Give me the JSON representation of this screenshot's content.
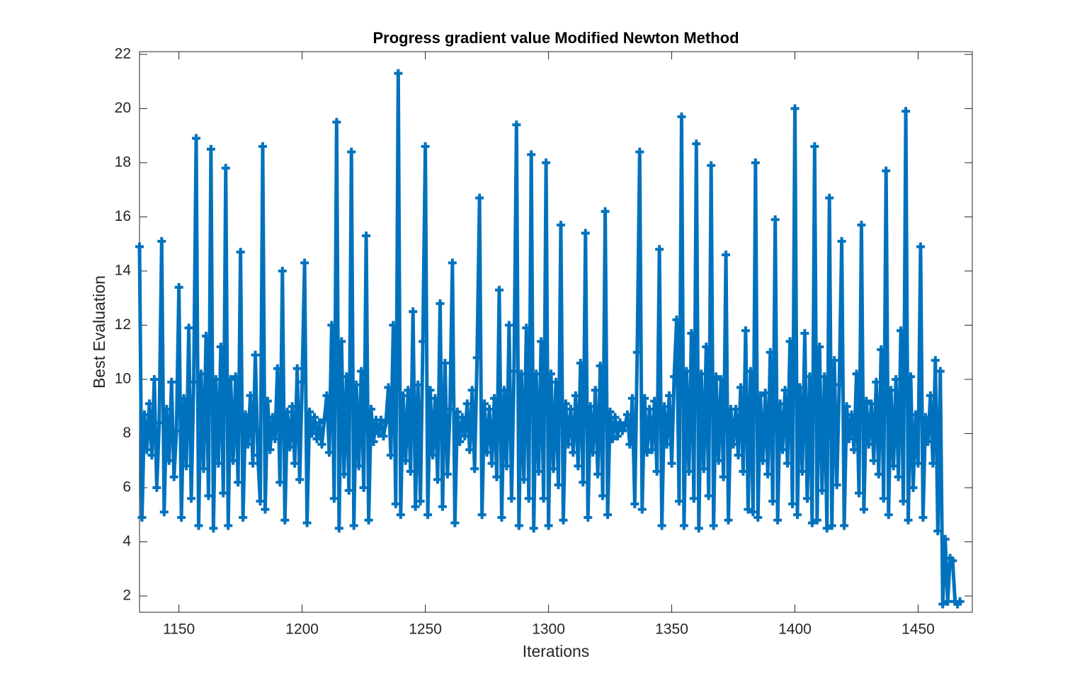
{
  "chart_data": {
    "type": "line",
    "title": "Progress gradient value Modified Newton Method",
    "x_label": "Iterations",
    "y_label": "Best Evaluation",
    "color": "#0072bd",
    "marker": "plus",
    "xlim": [
      1134,
      1472
    ],
    "ylim": [
      1.4,
      22.1
    ],
    "xticks": [
      1150,
      1200,
      1250,
      1300,
      1350,
      1400,
      1450
    ],
    "yticks": [
      2,
      4,
      6,
      8,
      10,
      12,
      14,
      16,
      18,
      20,
      22
    ],
    "x": [
      1134,
      1135,
      1136,
      1137,
      1138,
      1139,
      1140,
      1141,
      1142,
      1143,
      1144,
      1145,
      1146,
      1147,
      1148,
      1149,
      1150,
      1151,
      1152,
      1153,
      1154,
      1155,
      1156,
      1157,
      1158,
      1159,
      1160,
      1161,
      1162,
      1163,
      1164,
      1165,
      1166,
      1167,
      1168,
      1169,
      1170,
      1171,
      1172,
      1173,
      1174,
      1175,
      1176,
      1177,
      1178,
      1179,
      1180,
      1181,
      1182,
      1183,
      1184,
      1185,
      1186,
      1187,
      1188,
      1189,
      1190,
      1191,
      1192,
      1193,
      1194,
      1195,
      1196,
      1197,
      1198,
      1199,
      1200,
      1201,
      1202,
      1203,
      1204,
      1205,
      1206,
      1207,
      1208,
      1209,
      1210,
      1211,
      1212,
      1213,
      1214,
      1215,
      1216,
      1217,
      1218,
      1219,
      1220,
      1221,
      1222,
      1223,
      1224,
      1225,
      1226,
      1227,
      1228,
      1229,
      1230,
      1231,
      1232,
      1233,
      1234,
      1235,
      1236,
      1237,
      1238,
      1239,
      1240,
      1241,
      1242,
      1243,
      1244,
      1245,
      1246,
      1247,
      1248,
      1249,
      1250,
      1251,
      1252,
      1253,
      1254,
      1255,
      1256,
      1257,
      1258,
      1259,
      1260,
      1261,
      1262,
      1263,
      1264,
      1265,
      1266,
      1267,
      1268,
      1269,
      1270,
      1271,
      1272,
      1273,
      1274,
      1275,
      1276,
      1277,
      1278,
      1279,
      1280,
      1281,
      1282,
      1283,
      1284,
      1285,
      1286,
      1287,
      1288,
      1289,
      1290,
      1291,
      1292,
      1293,
      1294,
      1295,
      1296,
      1297,
      1298,
      1299,
      1300,
      1301,
      1302,
      1303,
      1304,
      1305,
      1306,
      1307,
      1308,
      1309,
      1310,
      1311,
      1312,
      1313,
      1314,
      1315,
      1316,
      1317,
      1318,
      1319,
      1320,
      1321,
      1322,
      1323,
      1324,
      1325,
      1326,
      1327,
      1328,
      1329,
      1330,
      1331,
      1332,
      1333,
      1334,
      1335,
      1336,
      1337,
      1338,
      1339,
      1340,
      1341,
      1342,
      1343,
      1344,
      1345,
      1346,
      1347,
      1348,
      1349,
      1350,
      1351,
      1352,
      1353,
      1354,
      1355,
      1356,
      1357,
      1358,
      1359,
      1360,
      1361,
      1362,
      1363,
      1364,
      1365,
      1366,
      1367,
      1368,
      1369,
      1370,
      1371,
      1372,
      1373,
      1374,
      1375,
      1376,
      1377,
      1378,
      1379,
      1380,
      1381,
      1382,
      1383,
      1384,
      1385,
      1386,
      1387,
      1388,
      1389,
      1390,
      1391,
      1392,
      1393,
      1394,
      1395,
      1396,
      1397,
      1398,
      1399,
      1400,
      1401,
      1402,
      1403,
      1404,
      1405,
      1406,
      1407,
      1408,
      1409,
      1410,
      1411,
      1412,
      1413,
      1414,
      1415,
      1416,
      1417,
      1418,
      1419,
      1420,
      1421,
      1422,
      1423,
      1424,
      1425,
      1426,
      1427,
      1428,
      1429,
      1430,
      1431,
      1432,
      1433,
      1434,
      1435,
      1436,
      1437,
      1438,
      1439,
      1440,
      1441,
      1442,
      1443,
      1444,
      1445,
      1446,
      1447,
      1448,
      1449,
      1450,
      1451,
      1452,
      1453,
      1454,
      1455,
      1456,
      1457,
      1458,
      1459,
      1460,
      1461,
      1462,
      1463,
      1464,
      1465,
      1466,
      1467
    ],
    "values": [
      14.9,
      4.9,
      8.7,
      7.4,
      9.1,
      7.2,
      10.0,
      6.0,
      8.4,
      15.1,
      5.1,
      8.9,
      7.0,
      9.9,
      6.4,
      8.1,
      13.4,
      4.9,
      9.3,
      6.8,
      11.9,
      5.6,
      9.9,
      18.9,
      4.6,
      10.2,
      6.7,
      11.6,
      5.7,
      18.5,
      4.5,
      10.0,
      6.9,
      11.2,
      5.8,
      17.8,
      4.6,
      10.0,
      7.0,
      10.1,
      6.2,
      14.7,
      4.9,
      8.7,
      7.6,
      9.4,
      6.9,
      10.9,
      7.2,
      5.5,
      18.6,
      5.2,
      9.2,
      7.4,
      8.6,
      7.8,
      10.4,
      6.2,
      14.0,
      4.8,
      8.8,
      7.5,
      9.0,
      6.9,
      10.4,
      6.3,
      9.9,
      14.3,
      4.7,
      8.8,
      8.0,
      8.6,
      7.8,
      8.4,
      7.6,
      8.5,
      9.4,
      7.3,
      12.0,
      5.6,
      19.5,
      4.5,
      11.4,
      6.5,
      10.1,
      5.9,
      18.4,
      4.6,
      9.8,
      6.8,
      10.3,
      6.0,
      15.3,
      4.8,
      8.9,
      7.7,
      8.5,
      8.0,
      8.5,
      7.9,
      8.4,
      9.7,
      7.2,
      12.0,
      5.4,
      21.3,
      5.0,
      9.4,
      7.0,
      9.6,
      6.6,
      12.5,
      5.3,
      9.8,
      5.5,
      11.4,
      18.6,
      5.0,
      9.6,
      7.2,
      9.3,
      6.3,
      12.8,
      5.3,
      10.6,
      6.5,
      8.9,
      14.3,
      4.7,
      8.8,
      7.7,
      8.6,
      7.9,
      9.1,
      7.4,
      9.6,
      6.7,
      10.8,
      16.7,
      5.0,
      9.1,
      7.3,
      8.9,
      6.9,
      9.3,
      6.4,
      13.3,
      4.9,
      9.6,
      6.8,
      12.0,
      5.6,
      10.3,
      19.4,
      4.6,
      10.2,
      6.3,
      11.9,
      5.6,
      18.3,
      4.5,
      10.2,
      6.6,
      11.4,
      5.6,
      18.0,
      4.6,
      10.2,
      6.7,
      9.9,
      6.1,
      15.7,
      4.8,
      9.1,
      7.6,
      8.9,
      7.3,
      9.4,
      6.8,
      10.6,
      6.2,
      15.4,
      4.9,
      9.0,
      7.3,
      9.6,
      6.5,
      10.5,
      5.7,
      16.2,
      5.0,
      8.8,
      7.8,
      8.6,
      7.9,
      8.4,
      8.1,
      8.3,
      8.7,
      7.6,
      9.3,
      5.4,
      11.0,
      18.4,
      5.2,
      9.3,
      7.3,
      8.9,
      7.4,
      9.2,
      6.6,
      14.8,
      4.6,
      9.0,
      7.6,
      9.4,
      6.9,
      10.1,
      12.2,
      5.5,
      19.7,
      4.6,
      10.3,
      6.6,
      11.7,
      5.6,
      18.7,
      4.5,
      10.2,
      6.7,
      11.2,
      5.7,
      17.9,
      4.6,
      10.1,
      7.0,
      10.0,
      6.4,
      14.6,
      4.8,
      8.9,
      7.6,
      8.9,
      7.2,
      9.7,
      6.6,
      11.8,
      5.2,
      10.3,
      5.1,
      18.0,
      4.9,
      9.4,
      7.0,
      9.5,
      6.5,
      11.0,
      5.5,
      15.9,
      4.8,
      9.1,
      7.4,
      9.6,
      6.9,
      11.4,
      5.4,
      20.0,
      5.0,
      9.7,
      6.6,
      11.7,
      5.6,
      10.1,
      4.7,
      18.6,
      4.8,
      11.2,
      5.9,
      10.1,
      4.5,
      16.7,
      4.6,
      10.7,
      6.1,
      9.8,
      15.1,
      4.6,
      9.0,
      7.8,
      8.7,
      7.4,
      10.2,
      5.8,
      15.7,
      5.2,
      9.2,
      7.6,
      9.1,
      7.0,
      9.9,
      6.5,
      11.1,
      5.6,
      17.7,
      5.0,
      9.6,
      6.8,
      10.0,
      6.4,
      11.8,
      5.5,
      19.9,
      4.8,
      10.1,
      6.0,
      8.7,
      6.9,
      14.9,
      4.9,
      8.6,
      7.7,
      9.4,
      6.9,
      10.7,
      4.4,
      10.3,
      1.7,
      4.1,
      1.8,
      3.4,
      3.3,
      1.8,
      1.7,
      1.8
    ]
  }
}
